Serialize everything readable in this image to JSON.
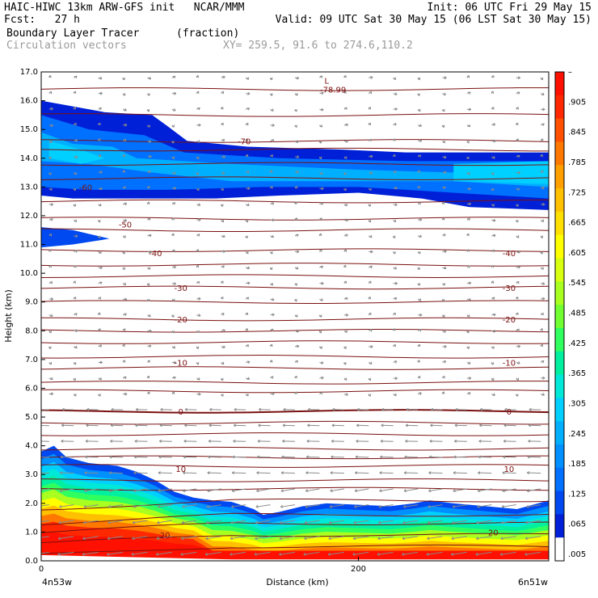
{
  "header": {
    "line1_left": "HAIC-HIWC 13km ARW-GFS init   NCAR/MMM",
    "line1_right": "Init: 06 UTC Fri 29 May 15",
    "line2_left": "Fcst:   27 h",
    "line2_right": "Valid: 09 UTC Sat 30 May 15 (06 LST Sat 30 May 15)",
    "line3_field": "Boundary Layer Tracer",
    "line3_units": "(fraction)",
    "line4_vectors": "Circulation vectors",
    "line4_xy": "XY= 259.5, 91.6 to 274.6,110.2"
  },
  "colors": {
    "contour": "#7a1010",
    "vector": "#8a8a8a",
    "palette": [
      "#ffffff",
      "#0020d8",
      "#0048f0",
      "#0070ff",
      "#0090ff",
      "#00b0ff",
      "#00d0ff",
      "#00e8d8",
      "#00f0a0",
      "#30ff60",
      "#70ff30",
      "#a8ff20",
      "#d8ff10",
      "#ffff00",
      "#ffe000",
      "#ffc000",
      "#ffa000",
      "#ff7800",
      "#ff5000",
      "#ff2800",
      "#ff1000"
    ]
  },
  "chart_data": {
    "type": "heatmap",
    "title": "Boundary Layer Tracer",
    "units": "(fraction)",
    "xlabel": "Distance (km)",
    "ylabel": "Height (km)",
    "xlim": [
      0,
      320
    ],
    "ylim": [
      0.0,
      17.0
    ],
    "x_ticks": [
      {
        "value": 0,
        "label": "0"
      },
      {
        "value": 200,
        "label": "200"
      }
    ],
    "x_endpoint_labels": [
      "4n53w",
      "6n51w"
    ],
    "y_ticks": [
      "0.0",
      "1.0",
      "2.0",
      "3.0",
      "4.0",
      "5.0",
      "6.0",
      "7.0",
      "8.0",
      "9.0",
      "10.0",
      "11.0",
      "12.0",
      "13.0",
      "14.0",
      "15.0",
      "16.0",
      "17.0"
    ],
    "colorbar": {
      "labels": [
        ".005",
        ".065",
        ".125",
        ".185",
        ".245",
        ".305",
        ".365",
        ".425",
        ".485",
        ".545",
        ".605",
        ".665",
        ".725",
        ".785",
        ".845",
        ".905",
        "–"
      ]
    },
    "temperature_contours": [
      {
        "label": "-78.99",
        "height": 16.4,
        "x": 184
      },
      {
        "label": "-70",
        "height": 14.6,
        "x": 128
      },
      {
        "label": "-60",
        "height": 13.0,
        "x": 28
      },
      {
        "label": "-50",
        "height": 11.7,
        "x": 53
      },
      {
        "label": "-40",
        "height": 10.7,
        "x": 72
      },
      {
        "label": "-40",
        "height": 10.7,
        "x": 295
      },
      {
        "label": "-30",
        "height": 9.5,
        "x": 88
      },
      {
        "label": "-30",
        "height": 9.5,
        "x": 295
      },
      {
        "label": "-20",
        "height": 8.4,
        "x": 88
      },
      {
        "label": "-20",
        "height": 8.4,
        "x": 295
      },
      {
        "label": "-10",
        "height": 6.9,
        "x": 88
      },
      {
        "label": "-10",
        "height": 6.9,
        "x": 295
      },
      {
        "label": "0",
        "height": 5.2,
        "x": 88
      },
      {
        "label": "0",
        "height": 5.2,
        "x": 295
      },
      {
        "label": "10",
        "height": 3.2,
        "x": 88
      },
      {
        "label": "10",
        "height": 3.2,
        "x": 295
      },
      {
        "label": "20",
        "height": 0.9,
        "x": 78
      },
      {
        "label": "20",
        "height": 1.0,
        "x": 285
      }
    ],
    "minimum_marker": {
      "label": "L",
      "height": 16.7,
      "x": 180
    }
  }
}
